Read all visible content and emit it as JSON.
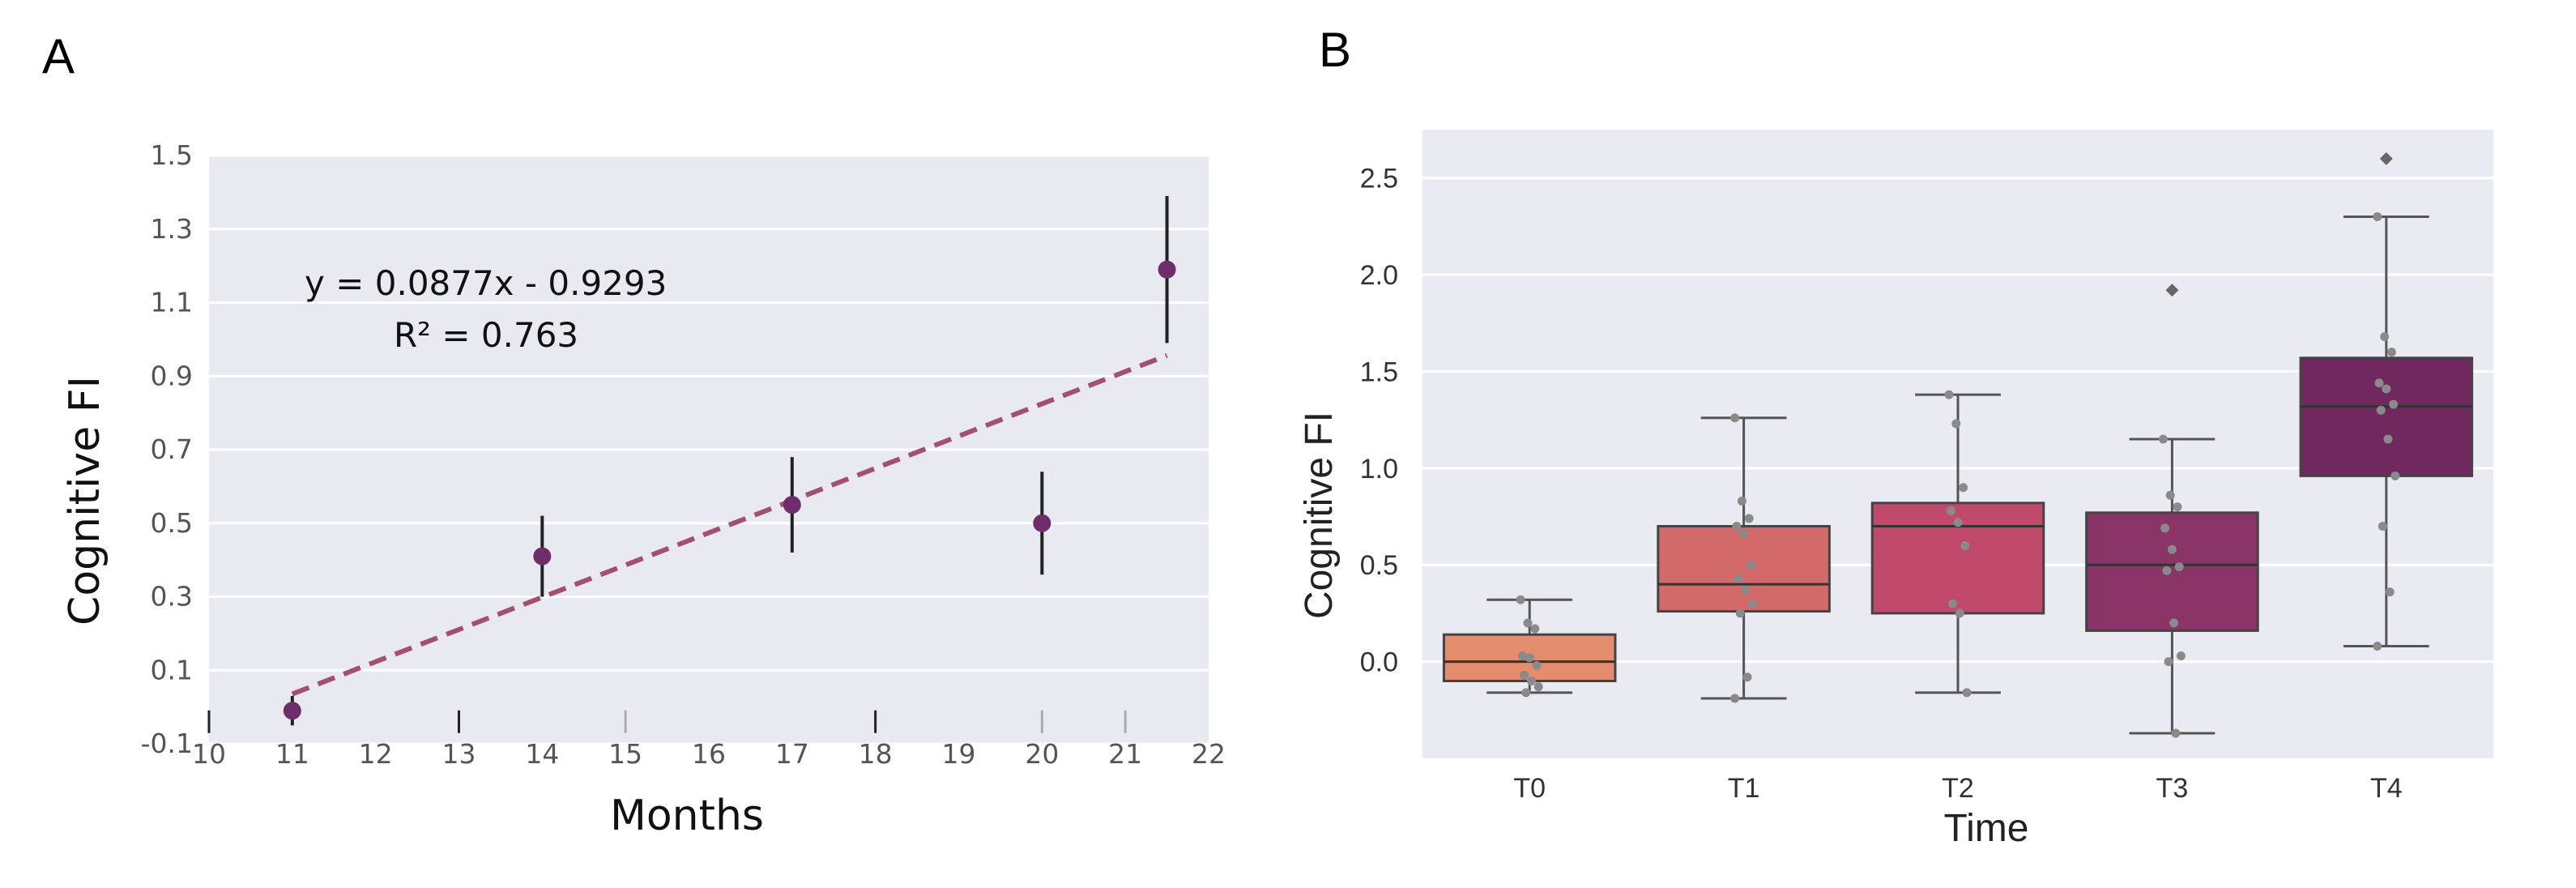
{
  "panels": {
    "a": {
      "label": "A"
    },
    "b": {
      "label": "B"
    }
  },
  "chart_data": [
    {
      "type": "scatter",
      "panel": "A",
      "xlabel": "Months",
      "ylabel": "Cognitive FI",
      "xlim": [
        10,
        22
      ],
      "ylim": [
        -0.1,
        1.5
      ],
      "xticks": [
        "10",
        "11",
        "12",
        "13",
        "14",
        "15",
        "16",
        "17",
        "18",
        "19",
        "20",
        "21",
        "22"
      ],
      "yticks": [
        "-0.1",
        "0.1",
        "0.3",
        "0.5",
        "0.7",
        "0.9",
        "1.1",
        "1.3",
        "1.5"
      ],
      "points": [
        {
          "x": 11,
          "y": -0.01,
          "err": 0.04
        },
        {
          "x": 14,
          "y": 0.41,
          "err": 0.11
        },
        {
          "x": 17,
          "y": 0.55,
          "err": 0.13
        },
        {
          "x": 20,
          "y": 0.5,
          "err": 0.14
        },
        {
          "x": 21.5,
          "y": 1.19,
          "err": 0.2
        }
      ],
      "trendline": {
        "slope": 0.0877,
        "intercept": -0.9293,
        "x_range": [
          11,
          21.5
        ]
      },
      "annotation": {
        "equation": "y = 0.0877x - 0.9293",
        "r2": "R² = 0.763"
      },
      "marker_color": "#6d2e6b",
      "line_color": "#a3506f",
      "plot_bg": "#e9e9f1",
      "grid": true
    },
    {
      "type": "box",
      "panel": "B",
      "xlabel": "Time",
      "ylabel": "Cognitive FI",
      "ylim": [
        -0.5,
        2.75
      ],
      "yticks": [
        "0.0",
        "0.5",
        "1.0",
        "1.5",
        "2.0",
        "2.5"
      ],
      "categories": [
        "T0",
        "T1",
        "T2",
        "T3",
        "T4"
      ],
      "boxes": [
        {
          "min": -0.16,
          "q1": -0.1,
          "median": 0.0,
          "q3": 0.14,
          "max": 0.32,
          "color": "#e38c6e",
          "points": [
            0.32,
            0.2,
            0.17,
            0.03,
            0.02,
            -0.02,
            -0.07,
            -0.1,
            -0.13,
            -0.16
          ],
          "outliers": []
        },
        {
          "min": -0.19,
          "q1": 0.26,
          "median": 0.4,
          "q3": 0.7,
          "max": 1.26,
          "color": "#d4696a",
          "points": [
            1.26,
            0.83,
            0.74,
            0.7,
            0.66,
            0.5,
            0.43,
            0.37,
            0.3,
            0.25,
            -0.08,
            -0.19
          ],
          "outliers": []
        },
        {
          "min": -0.16,
          "q1": 0.25,
          "median": 0.7,
          "q3": 0.82,
          "max": 1.38,
          "color": "#c0496c",
          "points": [
            1.38,
            1.23,
            0.9,
            0.78,
            0.72,
            0.6,
            0.3,
            0.25,
            -0.16
          ],
          "outliers": []
        },
        {
          "min": -0.37,
          "q1": 0.16,
          "median": 0.5,
          "q3": 0.77,
          "max": 1.15,
          "color": "#8b3467",
          "points": [
            1.15,
            0.86,
            0.8,
            0.69,
            0.58,
            0.49,
            0.47,
            0.2,
            0.03,
            0.0,
            -0.37
          ],
          "outliers": [
            1.92
          ]
        },
        {
          "min": 0.08,
          "q1": 0.96,
          "median": 1.32,
          "q3": 1.57,
          "max": 2.3,
          "color": "#70285f",
          "points": [
            2.3,
            1.68,
            1.6,
            1.44,
            1.41,
            1.33,
            1.3,
            1.15,
            0.96,
            0.7,
            0.36,
            0.08
          ],
          "outliers": [
            2.6
          ]
        }
      ],
      "plot_bg": "#eaeaf2",
      "grid": true
    }
  ]
}
